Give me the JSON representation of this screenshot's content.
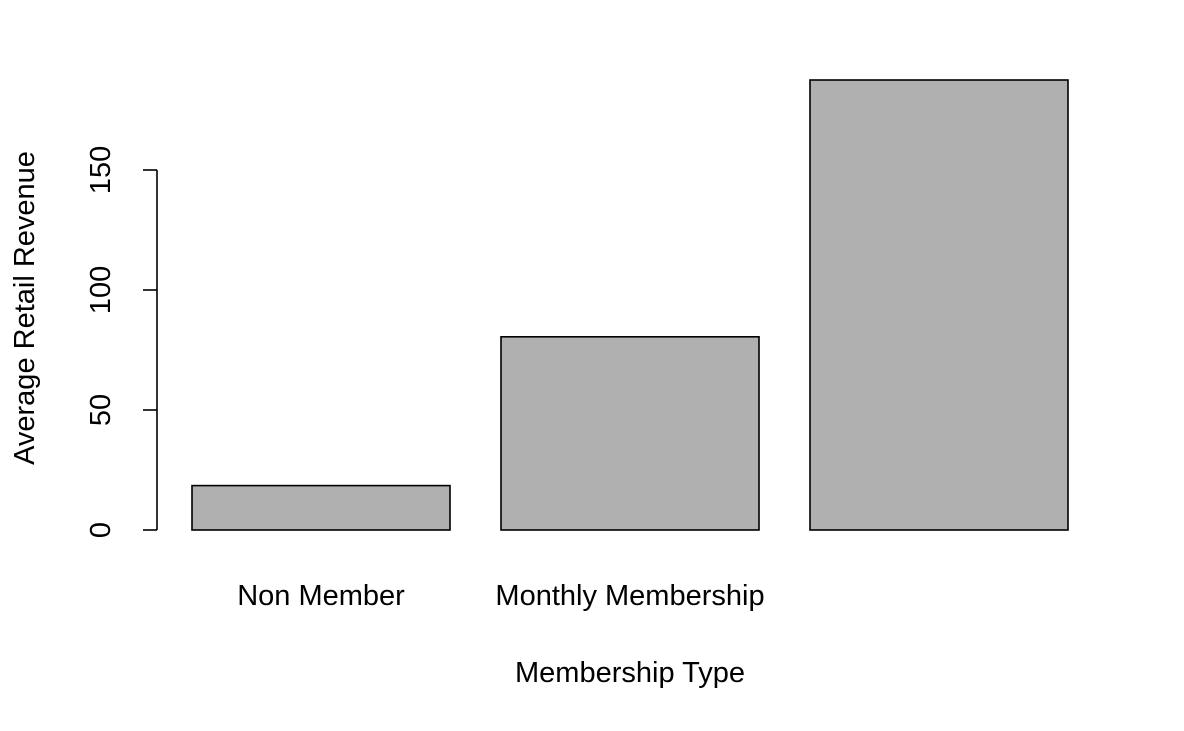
{
  "chart_data": {
    "type": "bar",
    "categories": [
      "Non Member",
      "Monthly Membership",
      ""
    ],
    "values": [
      18.5,
      80.5,
      187.5
    ],
    "title": "",
    "xlabel": "Membership Type",
    "ylabel": "Average Retail Revenue",
    "ylim": [
      0,
      187.5
    ],
    "yticks": [
      "0",
      "50",
      "100",
      "150"
    ],
    "grid": false,
    "legend": "none",
    "bar_color": "#b0b0b0",
    "bar_border_color": "#000000"
  }
}
